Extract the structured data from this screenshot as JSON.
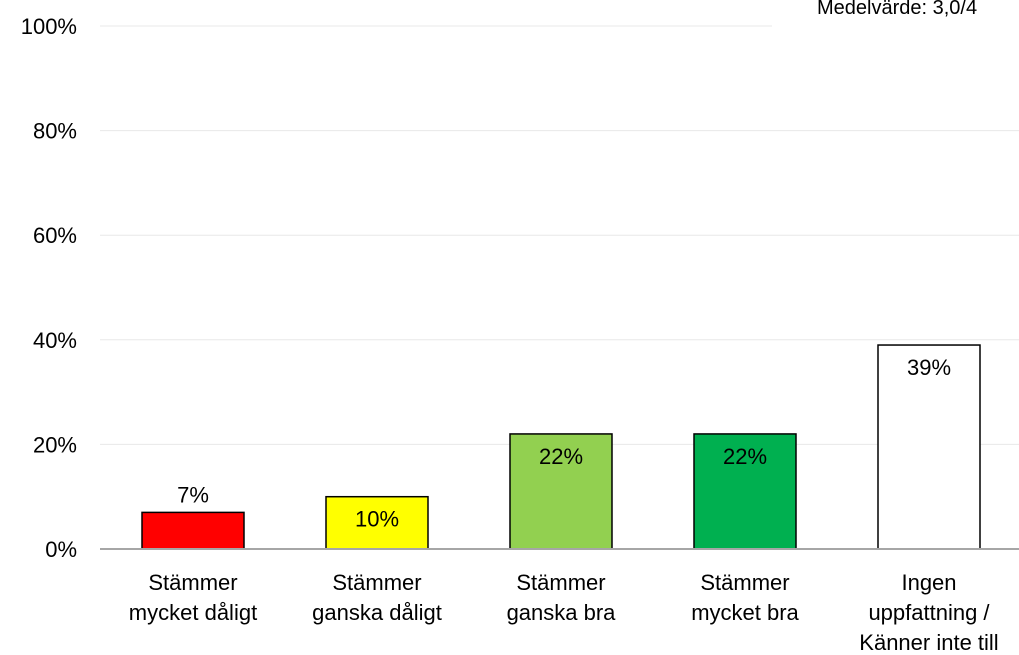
{
  "chart_data": {
    "type": "bar",
    "mean_label": "Medelvärde: 3,0/4",
    "categories": [
      [
        "Stämmer",
        "mycket dåligt"
      ],
      [
        "Stämmer",
        "ganska dåligt"
      ],
      [
        "Stämmer",
        "ganska bra"
      ],
      [
        "Stämmer",
        "mycket bra"
      ],
      [
        "Ingen",
        "uppfattning /",
        "Känner inte till"
      ]
    ],
    "values": [
      7,
      10,
      22,
      22,
      39
    ],
    "data_labels": [
      "7%",
      "10%",
      "22%",
      "22%",
      "39%"
    ],
    "colors": [
      "#ff0000",
      "#ffff00",
      "#92d050",
      "#00b050",
      "#ffffff"
    ],
    "ylim": [
      0,
      100
    ],
    "yticks": [
      "0%",
      "20%",
      "40%",
      "60%",
      "80%",
      "100%"
    ],
    "grid": true,
    "legend": "none"
  }
}
